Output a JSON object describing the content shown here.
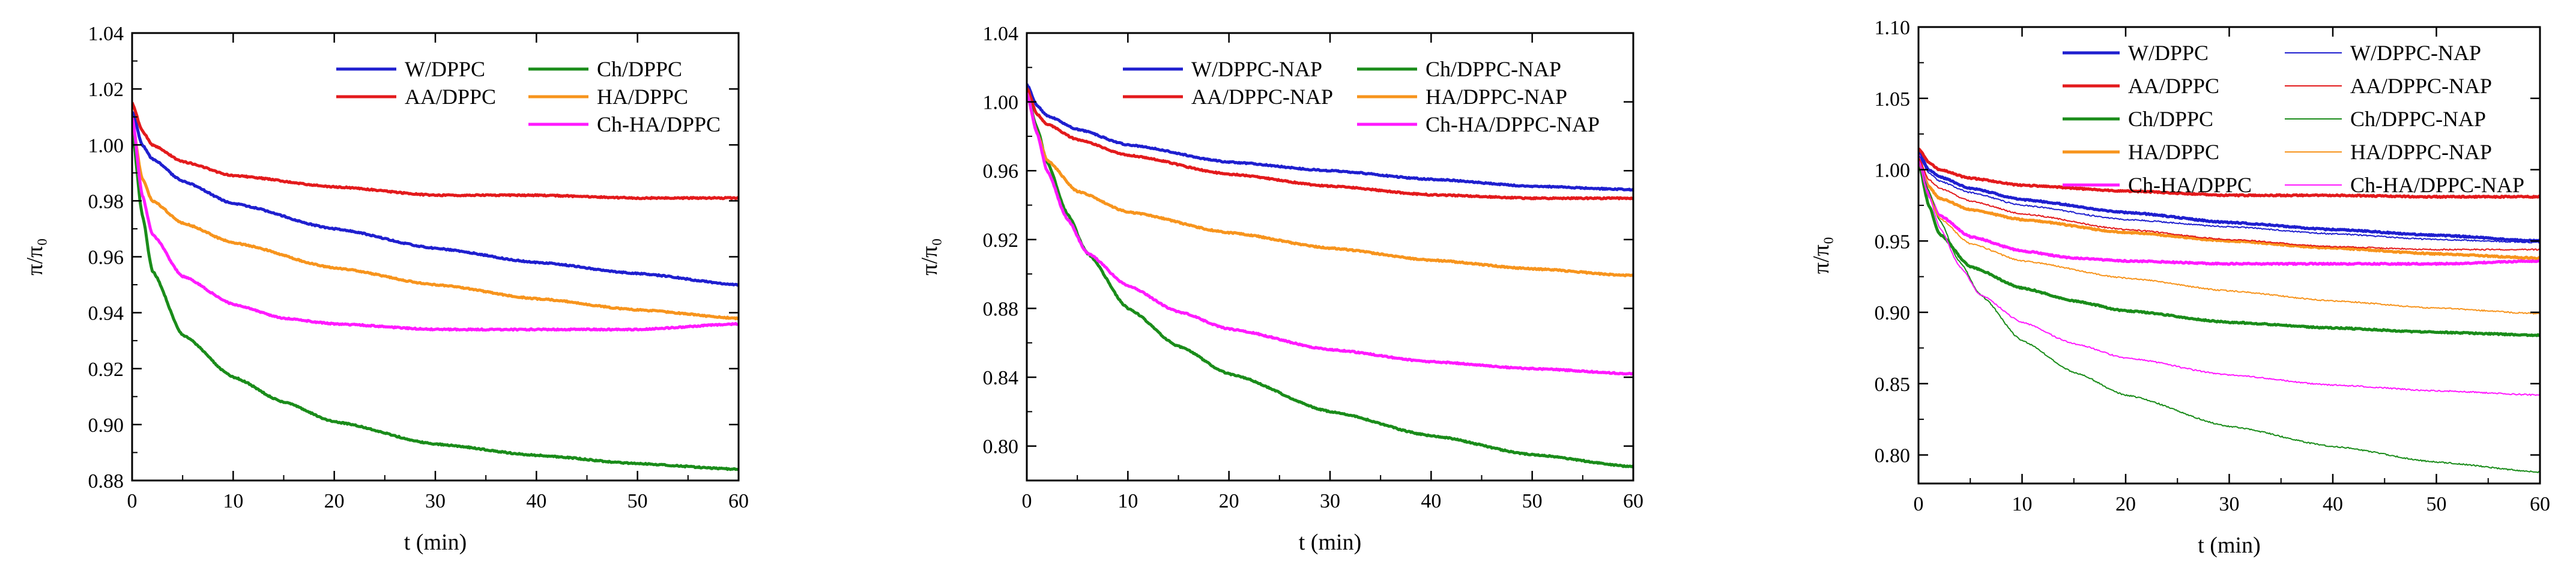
{
  "figure": {
    "panel_count": 3
  },
  "chart_data": [
    {
      "type": "line",
      "title": "",
      "xlabel": "t (min)",
      "ylabel": "π/π₀",
      "xlim": [
        0,
        60
      ],
      "ylim": [
        0.88,
        1.04
      ],
      "xticks": [
        0,
        10,
        20,
        30,
        40,
        50,
        60
      ],
      "xtick_labels": [
        "0",
        "10",
        "20",
        "30",
        "40",
        "50",
        "60"
      ],
      "yticks": [
        0.88,
        0.9,
        0.92,
        0.94,
        0.96,
        0.98,
        1.0,
        1.02,
        1.04
      ],
      "ytick_labels": [
        "0.88",
        "0.90",
        "0.92",
        "0.94",
        "0.96",
        "0.98",
        "1.00",
        "1.02",
        "1.04"
      ],
      "legend_position": "top-right",
      "series": [
        {
          "name": "W/DPPC",
          "color": "#1f1fcf",
          "width": "thick",
          "x": [
            0,
            1,
            2,
            5,
            10,
            20,
            30,
            40,
            50,
            60
          ],
          "y": [
            1.012,
            1.0,
            0.995,
            0.987,
            0.979,
            0.97,
            0.963,
            0.958,
            0.954,
            0.95
          ]
        },
        {
          "name": "AA/DPPC",
          "color": "#e31a1c",
          "width": "thick",
          "x": [
            0,
            1,
            2,
            5,
            10,
            20,
            30,
            40,
            50,
            60
          ],
          "y": [
            1.015,
            1.005,
            1.0,
            0.994,
            0.989,
            0.985,
            0.982,
            0.982,
            0.981,
            0.981
          ]
        },
        {
          "name": "Ch/DPPC",
          "color": "#1a8c1a",
          "width": "thick",
          "x": [
            0,
            1,
            2,
            5,
            10,
            15,
            20,
            30,
            40,
            50,
            60
          ],
          "y": [
            1.005,
            0.975,
            0.955,
            0.932,
            0.917,
            0.908,
            0.901,
            0.893,
            0.889,
            0.886,
            0.884
          ]
        },
        {
          "name": "HA/DPPC",
          "color": "#f7941d",
          "width": "thick",
          "x": [
            0,
            1,
            2,
            5,
            10,
            20,
            30,
            40,
            50,
            60
          ],
          "y": [
            1.008,
            0.988,
            0.98,
            0.972,
            0.965,
            0.956,
            0.95,
            0.945,
            0.941,
            0.938
          ]
        },
        {
          "name": "Ch-HA/DPPC",
          "color": "#ff1aff",
          "width": "thick",
          "x": [
            0,
            1,
            2,
            5,
            10,
            15,
            20,
            30,
            40,
            50,
            60
          ],
          "y": [
            1.01,
            0.982,
            0.968,
            0.953,
            0.943,
            0.938,
            0.936,
            0.934,
            0.934,
            0.934,
            0.936
          ]
        }
      ]
    },
    {
      "type": "line",
      "title": "",
      "xlabel": "t (min)",
      "ylabel": "π/π₀",
      "xlim": [
        0,
        60
      ],
      "ylim": [
        0.78,
        1.04
      ],
      "xticks": [
        0,
        10,
        20,
        30,
        40,
        50,
        60
      ],
      "xtick_labels": [
        "0",
        "10",
        "20",
        "30",
        "40",
        "50",
        "60"
      ],
      "yticks": [
        0.8,
        0.84,
        0.88,
        0.92,
        0.96,
        1.0,
        1.04
      ],
      "ytick_labels": [
        "0.80",
        "0.84",
        "0.88",
        "0.92",
        "0.96",
        "1.00",
        "1.04"
      ],
      "legend_position": "top-right",
      "series": [
        {
          "name": "W/DPPC-NAP",
          "color": "#1f1fcf",
          "width": "thick",
          "x": [
            0,
            1,
            2,
            5,
            10,
            20,
            30,
            40,
            50,
            60
          ],
          "y": [
            1.01,
            0.998,
            0.992,
            0.984,
            0.975,
            0.965,
            0.96,
            0.955,
            0.951,
            0.949
          ]
        },
        {
          "name": "AA/DPPC-NAP",
          "color": "#e31a1c",
          "width": "thick",
          "x": [
            0,
            1,
            2,
            5,
            10,
            20,
            30,
            40,
            50,
            60
          ],
          "y": [
            1.008,
            0.993,
            0.987,
            0.978,
            0.969,
            0.958,
            0.951,
            0.946,
            0.944,
            0.944
          ]
        },
        {
          "name": "Ch/DPPC-NAP",
          "color": "#1a8c1a",
          "width": "thick",
          "x": [
            0,
            1,
            2,
            4,
            6,
            10,
            15,
            20,
            30,
            40,
            50,
            60
          ],
          "y": [
            1.005,
            0.985,
            0.965,
            0.935,
            0.912,
            0.88,
            0.858,
            0.842,
            0.82,
            0.806,
            0.795,
            0.788
          ]
        },
        {
          "name": "HA/DPPC-NAP",
          "color": "#f7941d",
          "width": "thick",
          "x": [
            0,
            1,
            2,
            5,
            10,
            20,
            30,
            40,
            50,
            60
          ],
          "y": [
            1.005,
            0.982,
            0.966,
            0.948,
            0.936,
            0.924,
            0.915,
            0.908,
            0.903,
            0.899
          ]
        },
        {
          "name": "Ch-HA/DPPC-NAP",
          "color": "#ff1aff",
          "width": "thick",
          "x": [
            0,
            1,
            2,
            4,
            6,
            10,
            15,
            20,
            30,
            40,
            50,
            60
          ],
          "y": [
            1.005,
            0.982,
            0.96,
            0.932,
            0.912,
            0.893,
            0.878,
            0.868,
            0.856,
            0.849,
            0.845,
            0.842
          ]
        }
      ]
    },
    {
      "type": "line",
      "title": "",
      "xlabel": "t (min)",
      "ylabel": "π/π₀",
      "xlim": [
        0,
        60
      ],
      "ylim": [
        0.78,
        1.1
      ],
      "xticks": [
        0,
        10,
        20,
        30,
        40,
        50,
        60
      ],
      "xtick_labels": [
        "0",
        "10",
        "20",
        "30",
        "40",
        "50",
        "60"
      ],
      "yticks": [
        0.8,
        0.85,
        0.9,
        0.95,
        1.0,
        1.05,
        1.1
      ],
      "ytick_labels": [
        "0.80",
        "0.85",
        "0.90",
        "0.95",
        "1.00",
        "1.05",
        "1.10"
      ],
      "legend_position": "top-right",
      "series": [
        {
          "name": "W/DPPC",
          "color": "#1f1fcf",
          "width": "thick",
          "x": [
            0,
            1,
            2,
            5,
            10,
            20,
            30,
            40,
            50,
            60
          ],
          "y": [
            1.012,
            1.0,
            0.995,
            0.987,
            0.979,
            0.97,
            0.963,
            0.958,
            0.954,
            0.95
          ]
        },
        {
          "name": "AA/DPPC",
          "color": "#e31a1c",
          "width": "thick",
          "x": [
            0,
            1,
            2,
            5,
            10,
            20,
            30,
            40,
            50,
            60
          ],
          "y": [
            1.015,
            1.005,
            1.0,
            0.994,
            0.989,
            0.985,
            0.982,
            0.982,
            0.981,
            0.981
          ]
        },
        {
          "name": "Ch/DPPC",
          "color": "#1a8c1a",
          "width": "thick",
          "x": [
            0,
            1,
            2,
            5,
            10,
            15,
            20,
            30,
            40,
            50,
            60
          ],
          "y": [
            1.005,
            0.975,
            0.955,
            0.932,
            0.917,
            0.908,
            0.901,
            0.893,
            0.889,
            0.886,
            0.884
          ]
        },
        {
          "name": "HA/DPPC",
          "color": "#f7941d",
          "width": "thick",
          "x": [
            0,
            1,
            2,
            5,
            10,
            20,
            30,
            40,
            50,
            60
          ],
          "y": [
            1.008,
            0.988,
            0.98,
            0.972,
            0.965,
            0.956,
            0.95,
            0.945,
            0.941,
            0.938
          ]
        },
        {
          "name": "Ch-HA/DPPC",
          "color": "#ff1aff",
          "width": "thick",
          "x": [
            0,
            1,
            2,
            5,
            10,
            15,
            20,
            30,
            40,
            50,
            60
          ],
          "y": [
            1.01,
            0.982,
            0.968,
            0.953,
            0.943,
            0.938,
            0.936,
            0.934,
            0.934,
            0.934,
            0.936
          ]
        },
        {
          "name": "W/DPPC-NAP",
          "color": "#1f1fcf",
          "width": "thin",
          "x": [
            0,
            1,
            2,
            5,
            10,
            20,
            30,
            40,
            50,
            60
          ],
          "y": [
            1.01,
            0.998,
            0.992,
            0.984,
            0.975,
            0.965,
            0.96,
            0.955,
            0.951,
            0.949
          ]
        },
        {
          "name": "AA/DPPC-NAP",
          "color": "#e31a1c",
          "width": "thin",
          "x": [
            0,
            1,
            2,
            5,
            10,
            20,
            30,
            40,
            50,
            60
          ],
          "y": [
            1.008,
            0.993,
            0.987,
            0.978,
            0.969,
            0.958,
            0.951,
            0.946,
            0.944,
            0.944
          ]
        },
        {
          "name": "Ch/DPPC-NAP",
          "color": "#1a8c1a",
          "width": "thin",
          "x": [
            0,
            1,
            2,
            4,
            6,
            10,
            15,
            20,
            30,
            40,
            50,
            60
          ],
          "y": [
            1.005,
            0.985,
            0.965,
            0.935,
            0.912,
            0.88,
            0.858,
            0.842,
            0.82,
            0.806,
            0.795,
            0.788
          ]
        },
        {
          "name": "HA/DPPC-NAP",
          "color": "#f7941d",
          "width": "thin",
          "x": [
            0,
            1,
            2,
            5,
            10,
            20,
            30,
            40,
            50,
            60
          ],
          "y": [
            1.005,
            0.982,
            0.966,
            0.948,
            0.936,
            0.924,
            0.915,
            0.908,
            0.903,
            0.899
          ]
        },
        {
          "name": "Ch-HA/DPPC-NAP",
          "color": "#ff1aff",
          "width": "thin",
          "x": [
            0,
            1,
            2,
            4,
            6,
            10,
            15,
            20,
            30,
            40,
            50,
            60
          ],
          "y": [
            1.005,
            0.982,
            0.96,
            0.932,
            0.912,
            0.893,
            0.878,
            0.868,
            0.856,
            0.849,
            0.845,
            0.842
          ]
        }
      ]
    }
  ]
}
